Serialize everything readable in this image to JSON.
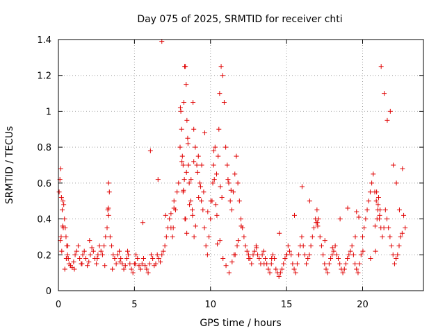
{
  "chart_data": {
    "type": "scatter",
    "title": "Day 075 of 2025, SRMTID for receiver chti",
    "xlabel": "GPS time / hours",
    "ylabel": "SRMTID / TECUs",
    "xlim": [
      0,
      24
    ],
    "ylim": [
      0,
      1.4
    ],
    "xticks": [
      0,
      5,
      10,
      15,
      20
    ],
    "xtick_labels": [
      "0",
      "5",
      "10",
      "15",
      "20"
    ],
    "yticks": [
      0,
      0.2,
      0.4,
      0.6,
      0.8,
      1,
      1.2,
      1.4
    ],
    "ytick_labels": [
      "0",
      "0.2",
      "0.4",
      "0.6",
      "0.8",
      "1",
      "1.2",
      "1.4"
    ],
    "grid": true,
    "marker": "plus",
    "color": "#e00000",
    "series": [
      {
        "name": "SRMTID",
        "x": [
          0.05,
          0.1,
          0.15,
          0.2,
          0.25,
          0.3,
          0.35,
          0.4,
          0.45,
          0.5,
          0.55,
          0.6,
          0.65,
          0.7,
          0.8,
          0.9,
          1.0,
          1.1,
          1.2,
          1.3,
          1.4,
          1.5,
          1.6,
          1.7,
          1.8,
          1.9,
          2.0,
          2.1,
          2.2,
          2.3,
          2.4,
          2.5,
          2.6,
          2.7,
          2.8,
          2.9,
          3.0,
          3.1,
          3.2,
          3.25,
          3.3,
          3.35,
          3.4,
          3.5,
          3.6,
          3.7,
          3.8,
          3.9,
          4.0,
          4.1,
          4.2,
          4.3,
          4.4,
          4.5,
          4.6,
          4.7,
          4.8,
          4.9,
          5.0,
          5.1,
          5.2,
          5.3,
          5.4,
          5.5,
          5.6,
          5.7,
          5.8,
          5.9,
          6.0,
          6.1,
          6.2,
          6.3,
          6.4,
          6.5,
          6.6,
          6.7,
          6.8,
          6.9,
          7.0,
          7.1,
          7.2,
          7.3,
          7.4,
          7.5,
          7.6,
          7.7,
          7.8,
          7.9,
          8.0,
          8.05,
          8.1,
          8.15,
          8.2,
          8.25,
          8.3,
          8.35,
          8.4,
          8.45,
          8.5,
          8.55,
          8.6,
          8.7,
          8.8,
          8.85,
          8.9,
          9.0,
          9.1,
          9.2,
          9.3,
          9.4,
          9.5,
          9.6,
          9.7,
          9.8,
          9.9,
          10.0,
          10.1,
          10.15,
          10.2,
          10.3,
          10.4,
          10.5,
          10.55,
          10.6,
          10.7,
          10.8,
          10.9,
          11.0,
          11.1,
          11.2,
          11.3,
          11.4,
          11.5,
          11.6,
          11.7,
          11.8,
          11.9,
          12.0,
          12.1,
          12.2,
          12.3,
          12.4,
          12.5,
          12.6,
          12.7,
          12.8,
          12.9,
          13.0,
          13.1,
          13.2,
          13.3,
          13.4,
          13.5,
          13.6,
          13.7,
          13.8,
          13.9,
          14.0,
          14.1,
          14.2,
          14.3,
          14.4,
          14.5,
          14.6,
          14.7,
          14.8,
          14.9,
          15.0,
          15.1,
          15.2,
          15.3,
          15.4,
          15.5,
          15.6,
          15.7,
          15.8,
          15.9,
          16.0,
          16.1,
          16.2,
          16.3,
          16.4,
          16.5,
          16.6,
          16.7,
          16.8,
          16.9,
          17.0,
          17.1,
          17.2,
          17.3,
          17.4,
          17.5,
          17.6,
          17.7,
          17.8,
          17.9,
          18.0,
          18.1,
          18.2,
          18.3,
          18.4,
          18.5,
          18.6,
          18.7,
          18.8,
          18.9,
          19.0,
          19.1,
          19.2,
          19.3,
          19.4,
          19.5,
          19.6,
          19.7,
          19.8,
          19.9,
          20.0,
          20.1,
          20.2,
          20.3,
          20.4,
          20.5,
          20.6,
          20.7,
          20.8,
          20.9,
          21.0,
          21.1,
          21.2,
          21.3,
          21.4,
          21.5,
          21.6,
          21.7,
          21.8,
          21.9,
          22.0,
          22.1,
          22.2,
          22.3,
          22.4,
          22.5,
          22.6,
          22.7,
          22.8,
          0.12,
          0.22,
          0.32,
          0.42,
          0.52,
          0.62,
          1.05,
          1.55,
          2.05,
          2.55,
          3.05,
          3.55,
          4.05,
          4.55,
          5.05,
          5.55,
          6.05,
          6.55,
          7.05,
          7.55,
          8.02,
          8.12,
          8.22,
          8.32,
          8.42,
          8.52,
          8.62,
          8.72,
          8.82,
          8.92,
          9.02,
          9.22,
          9.42,
          9.62,
          9.82,
          10.02,
          10.22,
          10.42,
          10.62,
          10.82,
          11.02,
          11.22,
          11.42,
          11.62,
          11.82,
          12.02,
          12.52,
          13.02,
          13.52,
          14.02,
          14.52,
          15.02,
          15.52,
          16.02,
          16.52,
          17.02,
          17.52,
          18.02,
          18.52,
          19.02,
          19.52,
          20.02,
          20.52,
          20.82,
          20.92,
          21.02,
          21.12,
          21.22,
          21.42,
          21.62,
          21.82,
          22.02,
          22.22,
          22.42,
          22.62,
          8.2,
          8.28,
          8.36,
          8.44,
          8.9,
          9.15,
          9.35,
          9.55,
          10.25,
          10.35,
          10.45,
          10.65,
          10.75,
          11.15,
          11.35,
          11.55,
          11.75,
          3.28,
          3.3,
          0.18,
          0.28,
          20.85,
          20.95,
          21.05,
          21.15,
          16.95,
          17.05,
          19.6,
          19.75,
          7.4,
          7.6,
          6.8
        ],
        "y": [
          0.55,
          0.62,
          0.68,
          0.52,
          0.45,
          0.5,
          0.48,
          0.4,
          0.35,
          0.3,
          0.25,
          0.2,
          0.18,
          0.15,
          0.14,
          0.13,
          0.16,
          0.2,
          0.22,
          0.25,
          0.18,
          0.15,
          0.2,
          0.22,
          0.18,
          0.14,
          0.16,
          0.2,
          0.24,
          0.22,
          0.18,
          0.15,
          0.2,
          0.25,
          0.22,
          0.2,
          0.25,
          0.3,
          0.35,
          0.45,
          0.6,
          0.55,
          0.3,
          0.25,
          0.2,
          0.18,
          0.15,
          0.2,
          0.22,
          0.18,
          0.15,
          0.12,
          0.14,
          0.18,
          0.2,
          0.15,
          0.12,
          0.1,
          0.15,
          0.2,
          0.18,
          0.14,
          0.12,
          0.15,
          0.18,
          0.14,
          0.12,
          0.1,
          0.15,
          0.2,
          0.18,
          0.14,
          0.15,
          0.2,
          0.18,
          0.16,
          0.2,
          0.22,
          0.25,
          0.3,
          0.35,
          0.4,
          0.35,
          0.3,
          0.5,
          0.45,
          0.55,
          0.6,
          0.8,
          1.0,
          0.9,
          0.75,
          0.7,
          1.05,
          1.25,
          1.25,
          1.15,
          0.95,
          0.85,
          0.7,
          0.6,
          0.5,
          0.45,
          1.05,
          0.9,
          0.8,
          0.7,
          0.75,
          0.6,
          0.5,
          0.45,
          0.35,
          0.25,
          0.2,
          0.3,
          0.4,
          0.5,
          0.6,
          0.7,
          0.8,
          0.65,
          0.75,
          0.9,
          1.1,
          1.25,
          1.2,
          1.05,
          0.8,
          0.7,
          0.6,
          0.5,
          0.45,
          0.55,
          0.65,
          0.75,
          0.6,
          0.5,
          0.4,
          0.35,
          0.3,
          0.25,
          0.22,
          0.2,
          0.18,
          0.15,
          0.2,
          0.22,
          0.25,
          0.2,
          0.18,
          0.15,
          0.2,
          0.22,
          0.18,
          0.15,
          0.12,
          0.1,
          0.15,
          0.2,
          0.18,
          0.12,
          0.1,
          0.08,
          0.1,
          0.12,
          0.15,
          0.18,
          0.2,
          0.25,
          0.22,
          0.2,
          0.15,
          0.12,
          0.1,
          0.15,
          0.2,
          0.25,
          0.3,
          0.25,
          0.2,
          0.15,
          0.18,
          0.2,
          0.25,
          0.3,
          0.35,
          0.4,
          0.45,
          0.4,
          0.3,
          0.25,
          0.2,
          0.15,
          0.12,
          0.1,
          0.15,
          0.18,
          0.2,
          0.22,
          0.25,
          0.2,
          0.18,
          0.15,
          0.12,
          0.1,
          0.12,
          0.15,
          0.18,
          0.2,
          0.22,
          0.25,
          0.2,
          0.15,
          0.12,
          0.1,
          0.15,
          0.2,
          0.3,
          0.35,
          0.4,
          0.45,
          0.5,
          0.55,
          0.6,
          0.65,
          0.55,
          0.5,
          0.45,
          0.4,
          0.35,
          0.3,
          0.35,
          0.45,
          0.4,
          0.35,
          0.3,
          0.25,
          0.2,
          0.15,
          0.18,
          0.2,
          0.25,
          0.3,
          0.32,
          0.42,
          0.35,
          0.28,
          0.22,
          0.35,
          0.12,
          0.18,
          0.25,
          0.12,
          0.15,
          0.28,
          0.18,
          0.14,
          0.12,
          0.16,
          0.22,
          0.15,
          0.38,
          0.78,
          0.62,
          0.42,
          0.35,
          1.02,
          0.72,
          0.56,
          0.4,
          0.66,
          0.82,
          0.48,
          0.62,
          0.42,
          0.3,
          0.36,
          0.52,
          0.7,
          0.88,
          0.44,
          0.5,
          0.78,
          0.42,
          0.28,
          0.18,
          0.14,
          0.1,
          0.16,
          0.2,
          0.28,
          0.36,
          0.18,
          0.24,
          0.15,
          0.18,
          0.32,
          0.2,
          0.42,
          0.58,
          0.5,
          0.38,
          0.28,
          0.24,
          0.4,
          0.46,
          0.3,
          0.22,
          0.18,
          0.36,
          0.55,
          0.48,
          0.42,
          1.25,
          1.1,
          0.95,
          1.0,
          0.7,
          0.6,
          0.45,
          0.68,
          0.55,
          0.62,
          0.4,
          0.32,
          0.72,
          0.66,
          0.58,
          0.55,
          0.62,
          0.48,
          0.26,
          0.58,
          0.52,
          0.62,
          0.56,
          0.2,
          0.25,
          0.46,
          0.42,
          0.3,
          0.36,
          0.22,
          0.4,
          0.52,
          0.45,
          0.38,
          0.36,
          0.44,
          0.41,
          0.43,
          0.46,
          1.39
        ]
      }
    ]
  }
}
